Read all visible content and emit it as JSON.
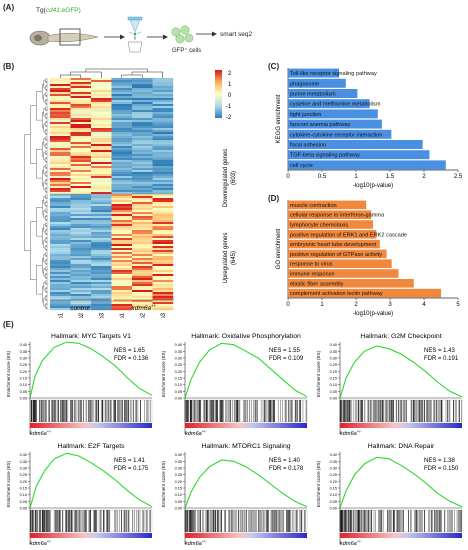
{
  "panels": {
    "a": "(A)",
    "b": "(B)",
    "c": "(C)",
    "d": "(D)",
    "e": "(E)"
  },
  "panel_a": {
    "tg_prefix": "Tg(",
    "tg_gene": "cd41",
    "tg_suffix": ":eGFP)",
    "gfp_label": "GFP⁺ cells",
    "seq_label": "smart seq2"
  },
  "heatmap": {
    "colorbar_ticks": [
      "2",
      "1",
      "0",
      "-1",
      "-2"
    ],
    "down_label": "Downregulated genes",
    "down_count": "(603)",
    "up_label": "Upregulated genes",
    "up_count": "(645)",
    "samples": [
      "rep1",
      "rep2",
      "rep3",
      "rep1",
      "rep2",
      "rep3"
    ],
    "group_control": "control",
    "group_mutant": "kdm6a",
    "mutant_sup": "+/-"
  },
  "chart_data": [
    {
      "type": "bar",
      "orientation": "horizontal",
      "ylabel": "KEGG enrichment",
      "xlabel": "-log10(p-value)",
      "xlim": [
        0,
        2.5
      ],
      "xticks": [
        "0",
        "0.5",
        "1",
        "1.5",
        "2",
        "2.5"
      ],
      "color": "#4a90e2",
      "categories": [
        "Toll-like receptor signaling pathway",
        "phagosome",
        "purine metabolism",
        "cysteine and methionine metabolism",
        "tight junction",
        "fanconi anemia pathway",
        "cytokine-cytokine receptor interaction",
        "focal adhesion",
        "TGF-beta signaling pathway",
        "cell cycle"
      ],
      "values": [
        0.75,
        0.85,
        1.02,
        1.2,
        1.32,
        1.38,
        1.52,
        1.98,
        2.08,
        2.32
      ]
    },
    {
      "type": "bar",
      "orientation": "horizontal",
      "ylabel": "GO enrichment",
      "xlabel": "-log10(p-value)",
      "xlim": [
        0,
        5
      ],
      "xticks": [
        "0",
        "1",
        "2",
        "3",
        "4",
        "5"
      ],
      "color": "#f0883e",
      "categories": [
        "muscle contraction",
        "cellular response to interferon-gamma",
        "lymphocyte chemotaxis",
        "positive regulation of ERK1 and ERK2 cascade",
        "embryonic heart tube development",
        "positive regulation of GTPase activity",
        "response to virus",
        "immune response",
        "elastic fiber assembly",
        "complement activation lectin pathway"
      ],
      "values": [
        2.3,
        2.45,
        2.5,
        2.6,
        2.7,
        2.9,
        3.05,
        3.25,
        3.7,
        4.5
      ]
    },
    {
      "type": "line",
      "title": "Hallmark: MYC Targets V1",
      "ylabel": "Enrichment score (ES)",
      "yticks": [
        "0.40",
        "0.35",
        "0.30",
        "0.25",
        "0.20",
        "0.15",
        "0.10",
        "0.05",
        "0.00"
      ],
      "nes": "NES = 1.65",
      "fdr": "FDR = 0.136",
      "x": [
        0,
        0.04,
        0.1,
        0.2,
        0.3,
        0.4,
        0.5,
        0.6,
        0.7,
        0.8,
        0.9,
        1.0
      ],
      "y": [
        0,
        0.16,
        0.28,
        0.38,
        0.42,
        0.41,
        0.37,
        0.31,
        0.24,
        0.15,
        0.07,
        0.02
      ],
      "group_label": "kdm6a"
    },
    {
      "type": "line",
      "title": "Hallmark: Oxidative Phosphorylation",
      "ylabel": "Enrichment score (ES)",
      "yticks": [
        "0.40",
        "0.35",
        "0.30",
        "0.25",
        "0.20",
        "0.15",
        "0.10",
        "0.05",
        "0.00"
      ],
      "nes": "NES = 1.55",
      "fdr": "FDR = 0.109",
      "x": [
        0,
        0.05,
        0.12,
        0.2,
        0.3,
        0.4,
        0.5,
        0.6,
        0.7,
        0.8,
        0.9,
        1.0
      ],
      "y": [
        0,
        0.14,
        0.27,
        0.36,
        0.41,
        0.4,
        0.35,
        0.3,
        0.22,
        0.14,
        0.06,
        0.01
      ],
      "group_label": "kdm6a"
    },
    {
      "type": "line",
      "title": "Hallmark: G2M Checkpoint",
      "ylabel": "Enrichment score (ES)",
      "yticks": [
        "0.40",
        "0.35",
        "0.30",
        "0.25",
        "0.20",
        "0.15",
        "0.10",
        "0.05",
        "0.00"
      ],
      "nes": "NES = 1.43",
      "fdr": "FDR = 0.191",
      "x": [
        0,
        0.05,
        0.12,
        0.2,
        0.3,
        0.4,
        0.5,
        0.6,
        0.7,
        0.8,
        0.9,
        1.0
      ],
      "y": [
        0,
        0.15,
        0.27,
        0.35,
        0.39,
        0.37,
        0.33,
        0.27,
        0.2,
        0.12,
        0.05,
        0.01
      ],
      "group_label": "kdm6a"
    },
    {
      "type": "line",
      "title": "Hallmark: E2F Targets",
      "ylabel": "Enrichment score (ES)",
      "yticks": [
        "0.40",
        "0.35",
        "0.30",
        "0.25",
        "0.20",
        "0.15",
        "0.10",
        "0.05",
        "0.00"
      ],
      "nes": "NES = 1.41",
      "fdr": "FDR = 0.175",
      "x": [
        0,
        0.05,
        0.12,
        0.2,
        0.3,
        0.4,
        0.5,
        0.6,
        0.7,
        0.8,
        0.9,
        1.0
      ],
      "y": [
        0,
        0.16,
        0.28,
        0.37,
        0.41,
        0.39,
        0.34,
        0.28,
        0.21,
        0.13,
        0.06,
        0.01
      ],
      "group_label": "kdm6a"
    },
    {
      "type": "line",
      "title": "Hallmark: MTORC1 Signaling",
      "ylabel": "Enrichment score (ES)",
      "yticks": [
        "0.40",
        "0.35",
        "0.30",
        "0.25",
        "0.20",
        "0.15",
        "0.10",
        "0.05",
        "0.00"
      ],
      "nes": "NES = 1.40",
      "fdr": "FDR = 0.178",
      "x": [
        0,
        0.05,
        0.12,
        0.2,
        0.3,
        0.4,
        0.5,
        0.6,
        0.7,
        0.8,
        0.9,
        1.0
      ],
      "y": [
        0,
        0.12,
        0.23,
        0.31,
        0.36,
        0.35,
        0.31,
        0.25,
        0.18,
        0.11,
        0.05,
        0.01
      ],
      "group_label": "kdm6a"
    },
    {
      "type": "line",
      "title": "Hallmark: DNA Repair",
      "ylabel": "Enrichment score (ES)",
      "yticks": [
        "0.40",
        "0.35",
        "0.30",
        "0.25",
        "0.20",
        "0.15",
        "0.10",
        "0.05",
        "0.00"
      ],
      "nes": "NES = 1.38",
      "fdr": "FDR = 0.150",
      "x": [
        0,
        0.05,
        0.12,
        0.2,
        0.3,
        0.4,
        0.5,
        0.6,
        0.7,
        0.8,
        0.9,
        1.0
      ],
      "y": [
        0,
        0.13,
        0.25,
        0.33,
        0.38,
        0.37,
        0.32,
        0.26,
        0.19,
        0.11,
        0.05,
        0.01
      ],
      "group_label": "kdm6a"
    }
  ]
}
